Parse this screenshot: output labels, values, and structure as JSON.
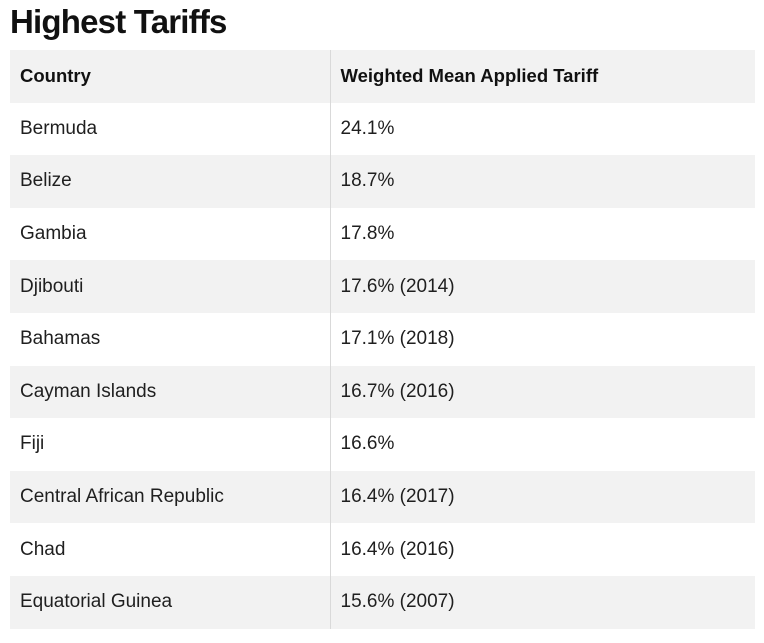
{
  "title": "Highest Tariffs",
  "table": {
    "headers": [
      "Country",
      "Weighted Mean Applied Tariff"
    ],
    "rows": [
      [
        "Bermuda",
        "24.1%"
      ],
      [
        "Belize",
        "18.7%"
      ],
      [
        "Gambia",
        "17.8%"
      ],
      [
        "Djibouti",
        "17.6% (2014)"
      ],
      [
        "Bahamas",
        "17.1% (2018)"
      ],
      [
        "Cayman Islands",
        "16.7% (2016)"
      ],
      [
        "Fiji",
        "16.6%"
      ],
      [
        "Central African Republic",
        "16.4% (2017)"
      ],
      [
        "Chad",
        "16.4% (2016)"
      ],
      [
        "Equatorial Guinea",
        "15.6% (2007)"
      ]
    ]
  }
}
